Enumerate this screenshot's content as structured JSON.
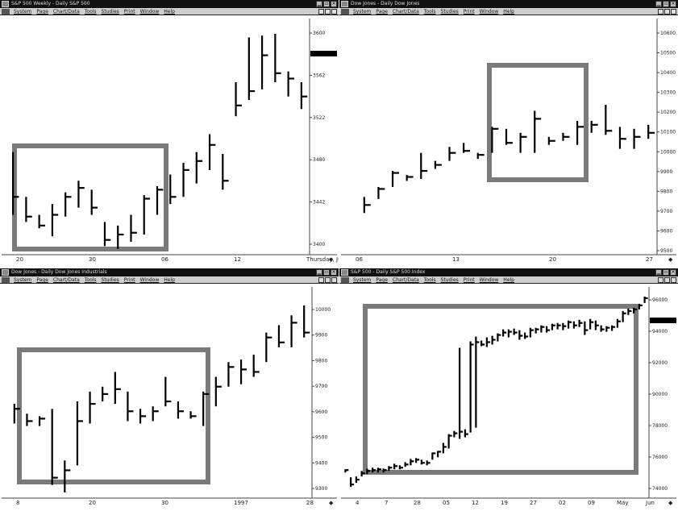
{
  "colors": {
    "titlebar": "#111111",
    "menubar": "#cfcfcf",
    "highlight_box": "#7a7a7a",
    "bars": "#000000",
    "last_price_marker": "#000000"
  },
  "panes": [
    {
      "id": "tl",
      "title": "S&P 500 Weekly - Daily  S&P 500",
      "menu": [
        "System",
        "Page",
        "Chart/Data",
        "Tools",
        "Studies",
        "Print",
        "Window",
        "Help"
      ],
      "y_ticks": [
        "3600",
        "3562",
        "3522",
        "3480",
        "3442",
        "3400"
      ],
      "x_labels": [
        "20",
        "30",
        "06",
        "12",
        "Thursday, June 12"
      ],
      "last_price_marker": true
    },
    {
      "id": "tr",
      "title": "Dow Jones - Daily  Dow Jones",
      "menu": [
        "System",
        "Page",
        "Chart/Data",
        "Tools",
        "Studies",
        "Print",
        "Window",
        "Help"
      ],
      "y_ticks": [
        "10600",
        "10500",
        "10400",
        "10300",
        "10200",
        "10100",
        "10000",
        "9900",
        "9800",
        "9700",
        "9600",
        "9500"
      ],
      "x_labels": [
        "06",
        "13",
        "20",
        "27"
      ],
      "last_price_marker": false
    },
    {
      "id": "bl",
      "title": "Dow Jones - Daily  Dow Jones Industrials",
      "menu": [
        "System",
        "Page",
        "Chart/Data",
        "Tools",
        "Studies",
        "Print",
        "Window",
        "Help"
      ],
      "y_ticks": [
        "10000",
        "9900",
        "9800",
        "9700",
        "9600",
        "9500",
        "9400",
        "9300"
      ],
      "x_labels": [
        "8",
        "20",
        "30",
        "1997",
        "28"
      ],
      "last_price_marker": false
    },
    {
      "id": "br",
      "title": "S&P 500 - Daily  S&P 500 Index",
      "menu": [
        "System",
        "Page",
        "Chart/Data",
        "Tools",
        "Studies",
        "Print",
        "Window",
        "Help"
      ],
      "y_ticks": [
        "96000",
        "94000",
        "92000",
        "90000",
        "78000",
        "76000",
        "74000"
      ],
      "x_labels": [
        "4",
        "7",
        "28",
        "05",
        "12",
        "19",
        "27",
        "02",
        "09",
        "May",
        "Jun"
      ],
      "last_price_marker": true
    }
  ],
  "chart_data": [
    {
      "type": "bar",
      "series": [
        {
          "values": [
            [
              3490,
              3420,
              3440
            ],
            [
              3440,
              3412,
              3418
            ],
            [
              3420,
              3405,
              3408
            ],
            [
              3432,
              3396,
              3420
            ],
            [
              3445,
              3418,
              3440
            ],
            [
              3458,
              3428,
              3450
            ],
            [
              3448,
              3420,
              3428
            ],
            [
              3412,
              3385,
              3392
            ],
            [
              3408,
              3382,
              3398
            ],
            [
              3420,
              3390,
              3400
            ],
            [
              3442,
              3398,
              3438
            ],
            [
              3452,
              3420,
              3448
            ],
            [
              3465,
              3432,
              3440
            ],
            [
              3478,
              3440,
              3470
            ],
            [
              3490,
              3455,
              3480
            ],
            [
              3510,
              3470,
              3498
            ],
            [
              3488,
              3448,
              3458
            ],
            [
              3568,
              3530,
              3542
            ],
            [
              3618,
              3548,
              3558
            ],
            [
              3620,
              3560,
              3598
            ],
            [
              3622,
              3568,
              3578
            ],
            [
              3580,
              3552,
              3572
            ],
            [
              3568,
              3538,
              3552
            ]
          ]
        }
      ],
      "ylim": [
        3380,
        3630
      ]
    },
    {
      "type": "bar",
      "series": [
        {
          "values": [
            [
              9800,
              9720,
              9760
            ],
            [
              9850,
              9790,
              9840
            ],
            [
              9930,
              9850,
              9920
            ],
            [
              9910,
              9880,
              9900
            ],
            [
              10020,
              9890,
              9930
            ],
            [
              9980,
              9940,
              9960
            ],
            [
              10050,
              9980,
              10020
            ],
            [
              10070,
              10020,
              10030
            ],
            [
              10020,
              9990,
              10010
            ],
            [
              10150,
              10020,
              10140
            ],
            [
              10140,
              10060,
              10070
            ],
            [
              10120,
              10020,
              10100
            ],
            [
              10230,
              10020,
              10190
            ],
            [
              10100,
              10060,
              10080
            ],
            [
              10120,
              10080,
              10100
            ],
            [
              10180,
              10060,
              10150
            ],
            [
              10180,
              10120,
              10160
            ],
            [
              10260,
              10110,
              10130
            ],
            [
              10150,
              10040,
              10090
            ],
            [
              10140,
              10040,
              10100
            ],
            [
              10160,
              10090,
              10120
            ]
          ]
        }
      ],
      "ylim": [
        9500,
        10650
      ]
    },
    {
      "type": "bar",
      "series": [
        {
          "values": [
            [
              9650,
              9570,
              9630
            ],
            [
              9610,
              9560,
              9580
            ],
            [
              9600,
              9560,
              9590
            ],
            [
              9630,
              9320,
              9350
            ],
            [
              9420,
              9290,
              9380
            ],
            [
              9660,
              9400,
              9580
            ],
            [
              9700,
              9570,
              9650
            ],
            [
              9720,
              9660,
              9690
            ],
            [
              9780,
              9650,
              9710
            ],
            [
              9700,
              9580,
              9620
            ],
            [
              9630,
              9570,
              9600
            ],
            [
              9640,
              9580,
              9620
            ],
            [
              9760,
              9640,
              9660
            ],
            [
              9660,
              9590,
              9620
            ],
            [
              9620,
              9590,
              9600
            ],
            [
              9700,
              9560,
              9690
            ],
            [
              9760,
              9640,
              9720
            ],
            [
              9820,
              9720,
              9800
            ],
            [
              9830,
              9730,
              9790
            ],
            [
              9850,
              9760,
              9780
            ],
            [
              9940,
              9820,
              9920
            ],
            [
              9970,
              9880,
              9900
            ],
            [
              10010,
              9880,
              9980
            ],
            [
              10050,
              9920,
              9940
            ]
          ]
        }
      ],
      "ylim": [
        9280,
        10060
      ]
    },
    {
      "type": "bar",
      "series": [
        {
          "values": [
            [
              76800,
              76400,
              76700
            ],
            [
              75800,
              74600,
              74900
            ],
            [
              75900,
              75100,
              75500
            ],
            [
              76600,
              75900,
              76300
            ],
            [
              76900,
              76200,
              76600
            ],
            [
              77000,
              76400,
              76700
            ],
            [
              77000,
              76400,
              76800
            ],
            [
              76900,
              76400,
              76700
            ],
            [
              77200,
              76600,
              77000
            ],
            [
              77500,
              76800,
              77200
            ],
            [
              77300,
              76800,
              77000
            ],
            [
              77700,
              77100,
              77400
            ],
            [
              78100,
              77300,
              77800
            ],
            [
              78200,
              77600,
              78000
            ],
            [
              78000,
              77400,
              77600
            ],
            [
              77900,
              77300,
              77600
            ],
            [
              78900,
              78000,
              78800
            ],
            [
              79100,
              78300,
              79000
            ],
            [
              80100,
              78800,
              79600
            ],
            [
              81200,
              79400,
              81000
            ],
            [
              81600,
              80800,
              81300
            ],
            [
              92000,
              80600,
              81500
            ],
            [
              81800,
              80800,
              81200
            ],
            [
              92800,
              81400,
              92400
            ],
            [
              93400,
              82000,
              92700
            ],
            [
              92900,
              92200,
              92400
            ],
            [
              93300,
              92100,
              92700
            ],
            [
              93500,
              92400,
              93000
            ],
            [
              93800,
              92800,
              93600
            ],
            [
              94300,
              93400,
              93900
            ],
            [
              94300,
              93300,
              94000
            ],
            [
              94400,
              93600,
              93900
            ],
            [
              94200,
              93000,
              93500
            ],
            [
              93900,
              93100,
              93400
            ],
            [
              94500,
              93300,
              94200
            ],
            [
              94500,
              93800,
              94300
            ],
            [
              94800,
              93900,
              94600
            ],
            [
              94700,
              93900,
              94200
            ],
            [
              95000,
              94200,
              94800
            ],
            [
              95100,
              94300,
              94800
            ],
            [
              95100,
              94200,
              94700
            ],
            [
              95400,
              94400,
              95200
            ],
            [
              95300,
              94400,
              94800
            ],
            [
              95500,
              94600,
              95100
            ],
            [
              95300,
              93600,
              94200
            ],
            [
              95600,
              94300,
              95200
            ],
            [
              95400,
              94200,
              94800
            ],
            [
              94800,
              94000,
              94300
            ],
            [
              94700,
              94000,
              94500
            ],
            [
              94800,
              94100,
              94600
            ],
            [
              95600,
              94500,
              95300
            ],
            [
              96600,
              95200,
              96300
            ],
            [
              96900,
              96100,
              96600
            ],
            [
              97000,
              96300,
              96800
            ],
            [
              97500,
              96800,
              97300
            ],
            [
              98400,
              97600,
              98200
            ]
          ]
        }
      ],
      "ylim": [
        73600,
        98800
      ]
    }
  ]
}
